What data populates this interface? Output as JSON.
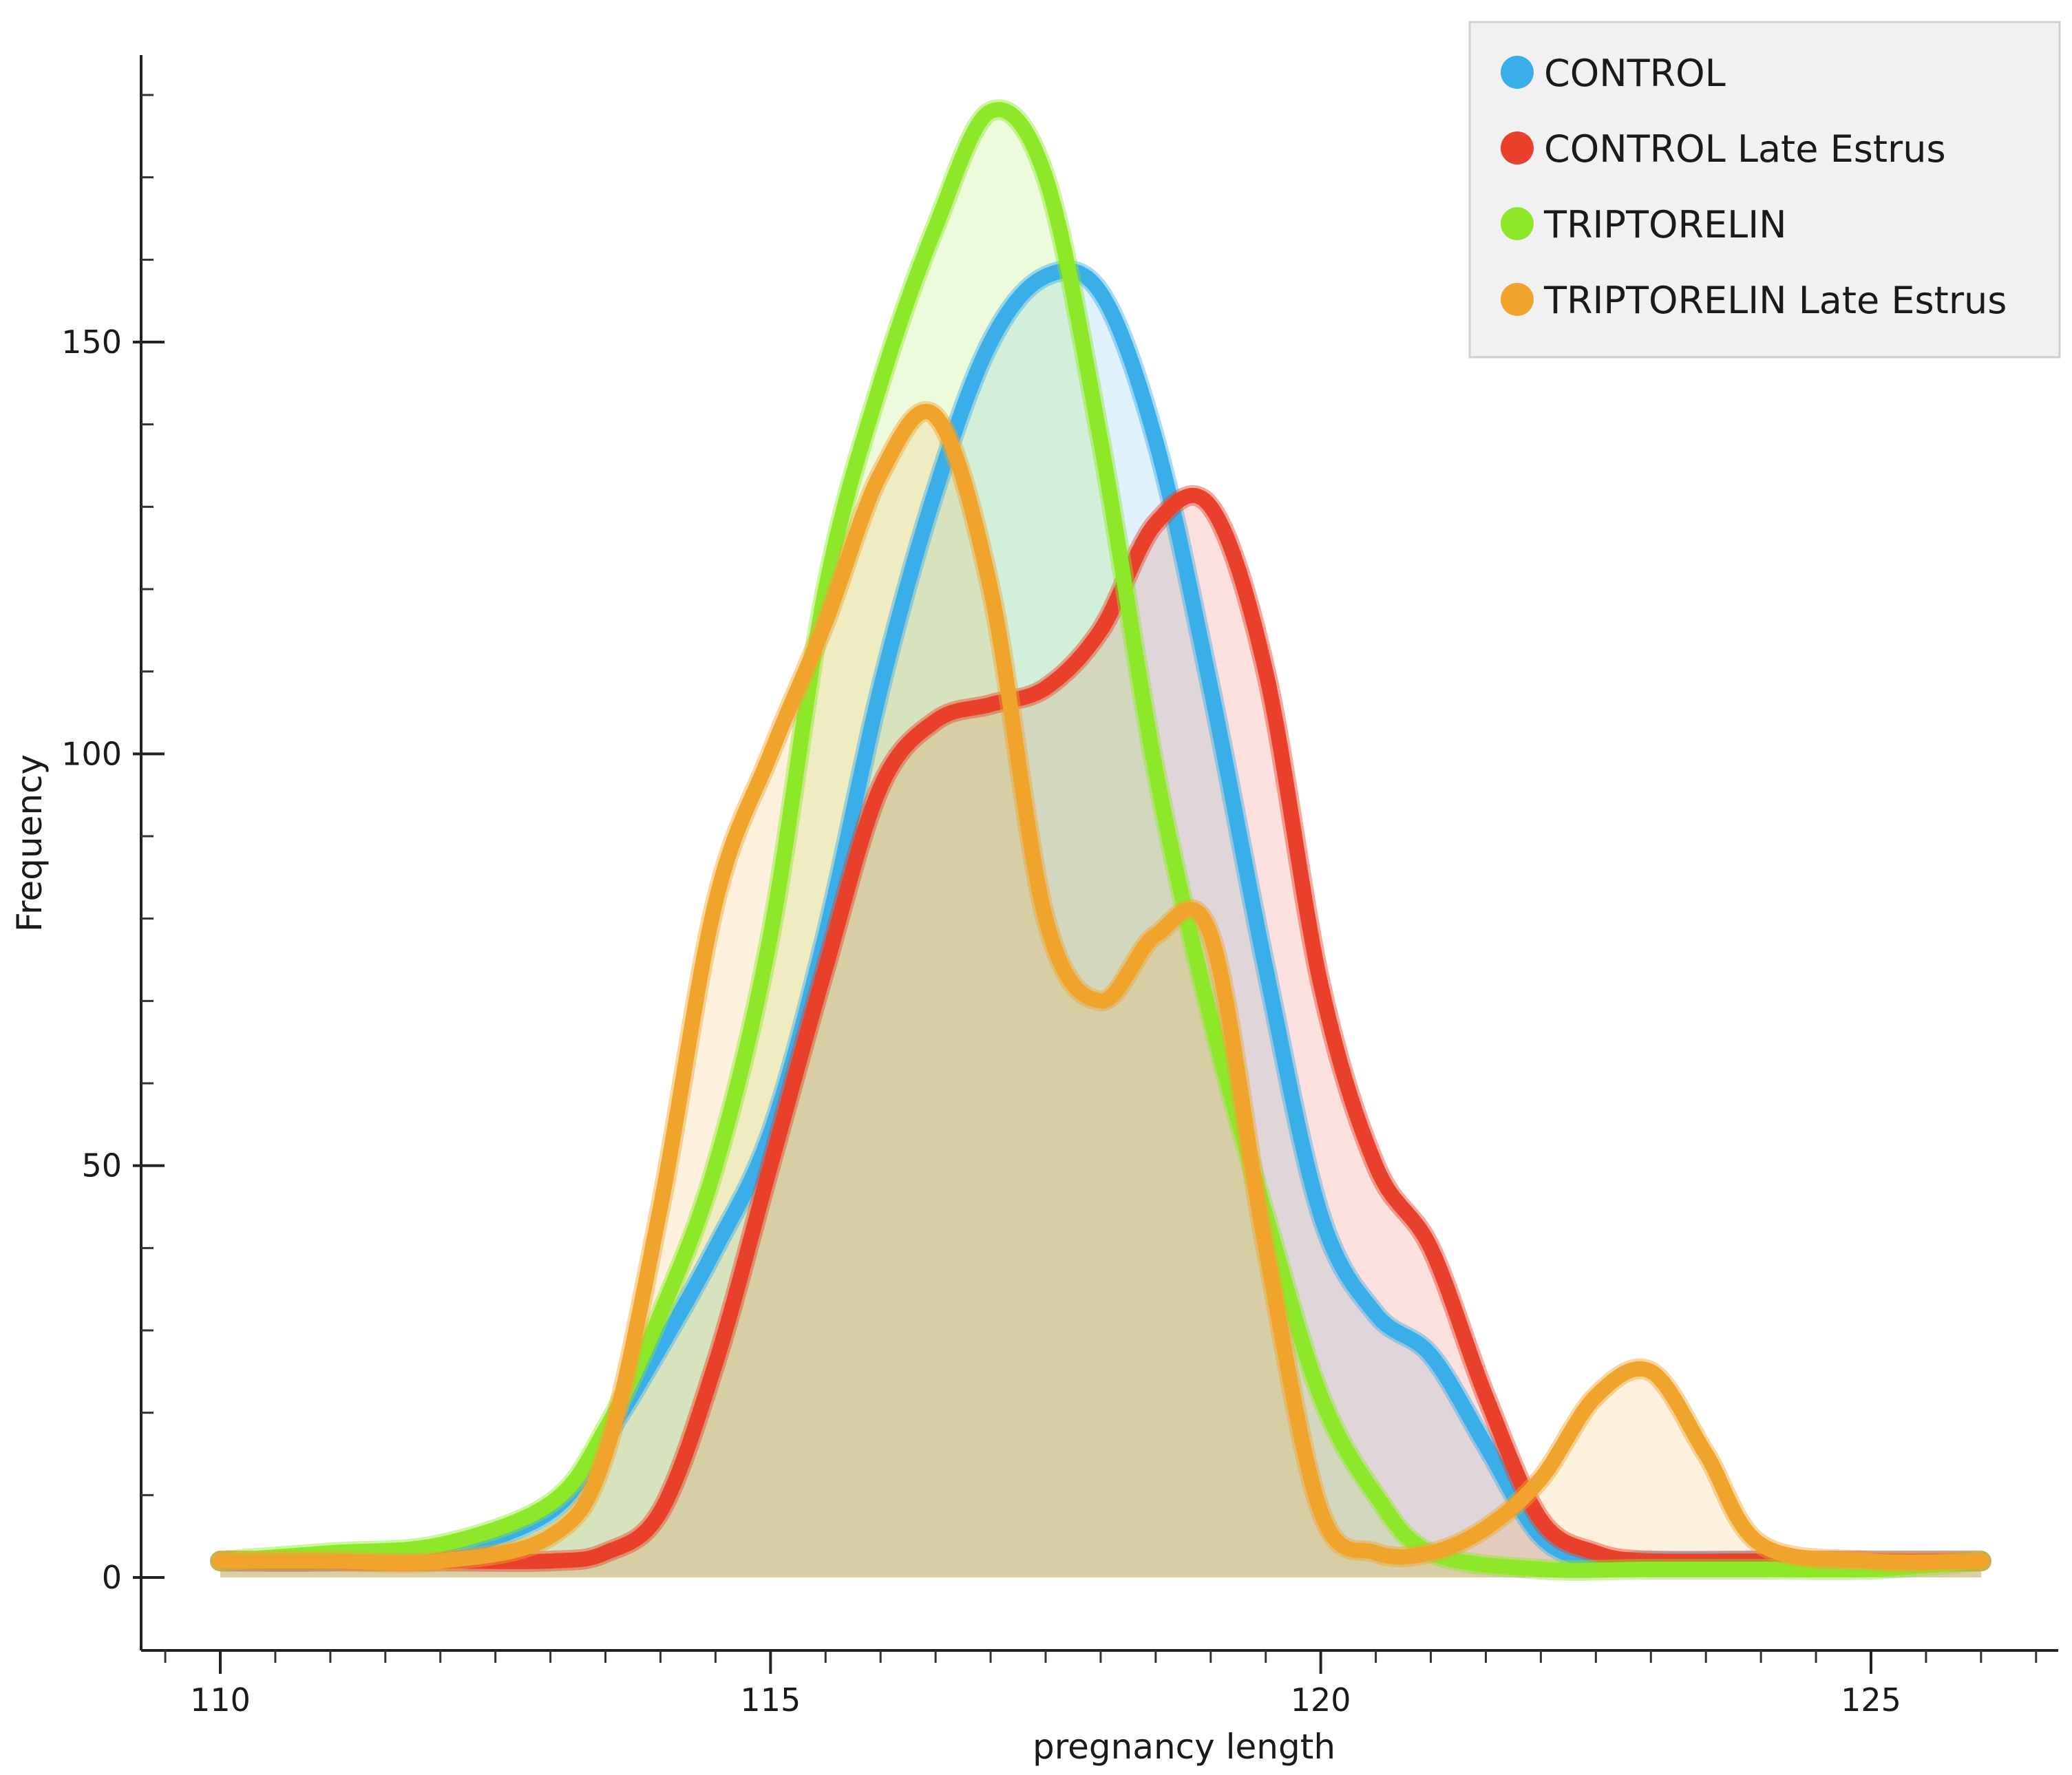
{
  "chart_data": {
    "type": "area",
    "title": "",
    "xlabel": "pregnancy length",
    "ylabel": "Frequency",
    "xlim": [
      109.3,
      126.8
    ],
    "ylim": [
      -10,
      185
    ],
    "x_ticks": [
      110,
      115,
      120,
      125
    ],
    "y_ticks": [
      0,
      50,
      100,
      150
    ],
    "x_minor_step": 0.5,
    "y_minor_step": 10,
    "legend_position": "top-right",
    "series": [
      {
        "name": "CONTROL",
        "color": "#3aaee8",
        "points": [
          [
            110,
            2
          ],
          [
            111,
            2
          ],
          [
            112,
            3
          ],
          [
            113,
            8
          ],
          [
            113.5,
            17
          ],
          [
            114,
            28
          ],
          [
            114.5,
            40
          ],
          [
            115,
            54
          ],
          [
            115.5,
            78
          ],
          [
            116,
            108
          ],
          [
            116.5,
            132
          ],
          [
            117,
            150
          ],
          [
            117.5,
            158
          ],
          [
            118,
            156
          ],
          [
            118.5,
            138
          ],
          [
            119,
            108
          ],
          [
            119.5,
            74
          ],
          [
            120,
            44
          ],
          [
            120.5,
            32
          ],
          [
            121,
            27
          ],
          [
            121.5,
            16
          ],
          [
            122,
            5
          ],
          [
            122.5,
            2
          ],
          [
            123,
            2
          ],
          [
            124,
            2
          ],
          [
            125,
            2
          ],
          [
            126,
            2
          ]
        ]
      },
      {
        "name": "CONTROL Late Estrus",
        "color": "#e8402a",
        "points": [
          [
            110,
            2
          ],
          [
            111,
            2
          ],
          [
            112,
            2
          ],
          [
            113,
            2
          ],
          [
            113.5,
            3
          ],
          [
            114,
            8
          ],
          [
            114.5,
            26
          ],
          [
            115,
            50
          ],
          [
            115.5,
            74
          ],
          [
            116,
            96
          ],
          [
            116.5,
            104
          ],
          [
            117,
            106
          ],
          [
            117.5,
            108
          ],
          [
            118,
            115
          ],
          [
            118.5,
            128
          ],
          [
            119,
            130
          ],
          [
            119.5,
            110
          ],
          [
            120,
            72
          ],
          [
            120.5,
            50
          ],
          [
            121,
            40
          ],
          [
            121.5,
            22
          ],
          [
            122,
            7
          ],
          [
            122.5,
            3
          ],
          [
            123,
            2
          ],
          [
            124,
            2
          ],
          [
            125,
            2
          ],
          [
            126,
            2
          ]
        ]
      },
      {
        "name": "TRIPTORELIN",
        "color": "#8ee82a",
        "points": [
          [
            110,
            2
          ],
          [
            111,
            3
          ],
          [
            112,
            4
          ],
          [
            113,
            9
          ],
          [
            113.5,
            18
          ],
          [
            114,
            32
          ],
          [
            114.5,
            50
          ],
          [
            115,
            78
          ],
          [
            115.5,
            120
          ],
          [
            116,
            145
          ],
          [
            116.5,
            164
          ],
          [
            117,
            178
          ],
          [
            117.5,
            170
          ],
          [
            118,
            138
          ],
          [
            118.5,
            98
          ],
          [
            119,
            68
          ],
          [
            119.5,
            44
          ],
          [
            120,
            22
          ],
          [
            120.5,
            10
          ],
          [
            121,
            3
          ],
          [
            122,
            1
          ],
          [
            123,
            1
          ],
          [
            124,
            1
          ],
          [
            125,
            1
          ],
          [
            126,
            2
          ]
        ]
      },
      {
        "name": "TRIPTORELIN Late Estrus",
        "color": "#f0a42c",
        "points": [
          [
            110,
            2
          ],
          [
            111,
            2
          ],
          [
            112,
            2
          ],
          [
            113,
            5
          ],
          [
            113.5,
            15
          ],
          [
            114,
            45
          ],
          [
            114.5,
            82
          ],
          [
            115,
            100
          ],
          [
            115.5,
            116
          ],
          [
            116,
            134
          ],
          [
            116.5,
            141
          ],
          [
            117,
            120
          ],
          [
            117.5,
            80
          ],
          [
            118,
            70
          ],
          [
            118.5,
            78
          ],
          [
            119,
            78
          ],
          [
            119.5,
            40
          ],
          [
            120,
            8
          ],
          [
            120.5,
            3
          ],
          [
            121,
            3
          ],
          [
            121.5,
            6
          ],
          [
            122,
            12
          ],
          [
            122.5,
            22
          ],
          [
            123,
            25
          ],
          [
            123.5,
            15
          ],
          [
            124,
            4
          ],
          [
            125,
            2
          ],
          [
            126,
            2
          ]
        ]
      }
    ]
  }
}
